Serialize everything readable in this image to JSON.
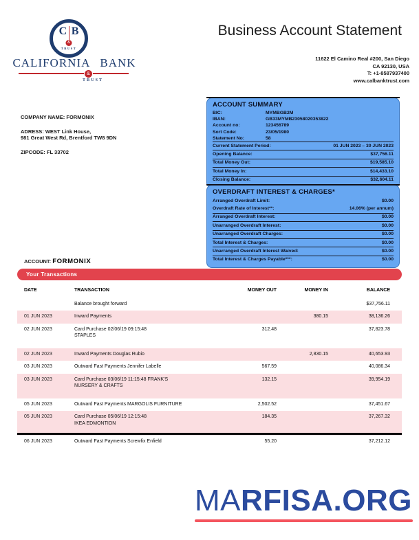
{
  "logo": {
    "initial_left": "C",
    "initial_right": "B",
    "ring_trust": "TRUST",
    "amp": "&",
    "word_left": "CALIFORNIA",
    "word_right": "BANK",
    "word_trust": "TRUST"
  },
  "header": {
    "title": "Business Account Statement",
    "address_line1": "11622 El Camino Real #200, San Diego",
    "address_line2": "CA 92130, USA",
    "address_line3": "T: +1-8587937400",
    "address_line4": "www.calbanktrust.com"
  },
  "company": {
    "name_line": "COMPANY NAME: FORMONIX",
    "address_line1": "ADRESS: WEST Link House,",
    "address_line2": "981 Great West Rd, Brentford TW8 9DN",
    "zipcode_line": "ZIPCODE: FL 33702"
  },
  "account_summary": {
    "title": "ACCOUNT SUMMARY",
    "details": [
      {
        "label": "BIC:",
        "value": "MYMBGB2M"
      },
      {
        "label": "IBAN:",
        "value": "GB33MYMB23058020353822"
      },
      {
        "label": "Account no:",
        "value": "123456789"
      },
      {
        "label": "Sort Code:",
        "value": "23/05/1980"
      },
      {
        "label": "Statement No:",
        "value": "58"
      }
    ],
    "totals": [
      {
        "label": "Current Statement Period:",
        "value": "01 JUN 2023 – 30 JUN 2023"
      },
      {
        "label": "Opening Balance:",
        "value": "$37,756.11"
      },
      {
        "label": "Total Money Out:",
        "value": "$19,585.10"
      },
      {
        "label": "Total Money In:",
        "value": "$14,433.10"
      },
      {
        "label": "Closing Balance:",
        "value": "$32,604.11"
      }
    ]
  },
  "overdraft": {
    "title": "OVERDRAFT INTEREST & CHARGES*",
    "rows": [
      {
        "label": "Arranged Overdraft Limit:",
        "value": "$0.00",
        "divider": false
      },
      {
        "label": "Overdraft Rate of Interest**:",
        "value": "14.06% (per annum)",
        "divider": false
      },
      {
        "label": "Arranged Overdraft Interest:",
        "value": "$0.00",
        "divider": true
      },
      {
        "label": "Unarranged Overdraft Interest:",
        "value": "$0.00",
        "divider": true
      },
      {
        "label": "Unarranged Overdraft Charges:",
        "value": "$0.00",
        "divider": true
      },
      {
        "label": "Total Interest & Charges:",
        "value": "$0.00",
        "divider": true
      },
      {
        "label": "Unarranged Overdraft Interest Waived:",
        "value": "$0.00",
        "divider": true
      },
      {
        "label": "Total Interest & Charges Payable***:",
        "value": "$0.00",
        "divider": true
      }
    ]
  },
  "transactions": {
    "account_label": "ACCOUNT:",
    "account_name": "FORMONIX",
    "banner": "Your Transactions",
    "columns": [
      "DATE",
      "TRANSACTION",
      "MONEY OUT",
      "MONEY IN",
      "BALANCE"
    ],
    "rows": [
      {
        "date": "",
        "line1": "Balance brought forward",
        "line2": "",
        "money_out": "",
        "money_in": "",
        "balance": "$37,756.11",
        "shaded": false,
        "tall": false
      },
      {
        "date": "01 JUN 2023",
        "line1": "Inward Payments",
        "line2": "",
        "money_out": "",
        "money_in": "380.15",
        "balance": "38,136.26",
        "shaded": true,
        "tall": false
      },
      {
        "date": "02 JUN 2023",
        "line1": "Card Purchase 02/06/19 09:15:48",
        "line2": "STAPLES",
        "money_out": "312.48",
        "money_in": "",
        "balance": "37,823.78",
        "shaded": false,
        "tall": true
      },
      {
        "date": "02 JUN 2023",
        "line1": "Inward Payments Douglas Rubio",
        "line2": "",
        "money_out": "",
        "money_in": "2,830.15",
        "balance": "40,653.93",
        "shaded": true,
        "tall": false
      },
      {
        "date": "03 JUN 2023",
        "line1": "Outward Fast Payments Jennifer Labelle",
        "line2": "",
        "money_out": "567.59",
        "money_in": "",
        "balance": "40,086.34",
        "shaded": false,
        "tall": false
      },
      {
        "date": "03 JUN 2023",
        "line1": "Card Purchase 03/06/19 11:15:48 FRANK'S",
        "line2": "NURSERY & CRAFTS",
        "money_out": "132.15",
        "money_in": "",
        "balance": "39,954.19",
        "shaded": true,
        "tall": true
      },
      {
        "date": "05 JUN 2023",
        "line1": "Outward Fast Payments MARGOLIS FURNITURE",
        "line2": "",
        "money_out": "2,502.52",
        "money_in": "",
        "balance": "37,451.67",
        "shaded": false,
        "tall": false
      },
      {
        "date": "05 JUN 2023",
        "line1": "Card Purchase 05/06/19 12:15:48",
        "line2": "IKEA EDMONTION",
        "money_out": "184.35",
        "money_in": "",
        "balance": "37,267.32",
        "shaded": true,
        "tall": true
      },
      {
        "date": "06 JUN 2023",
        "line1": "Outward Fast Payments Screwfix Enfield",
        "line2": "",
        "money_out": "55.20",
        "money_in": "",
        "balance": "37,212.12",
        "shaded": false,
        "tall": false
      }
    ]
  },
  "footer": {
    "logo_prefix": "MA",
    "logo_suffix": "RFISA.ORG"
  },
  "colors": {
    "brand_navy": "#1e3c6e",
    "brand_red": "#c1272d",
    "summary_blue": "#67a7f2",
    "banner_red": "#e2434d",
    "row_pink": "#fbdee1",
    "footer_blue": "#2b4b9e",
    "footer_red": "#f4555e"
  }
}
